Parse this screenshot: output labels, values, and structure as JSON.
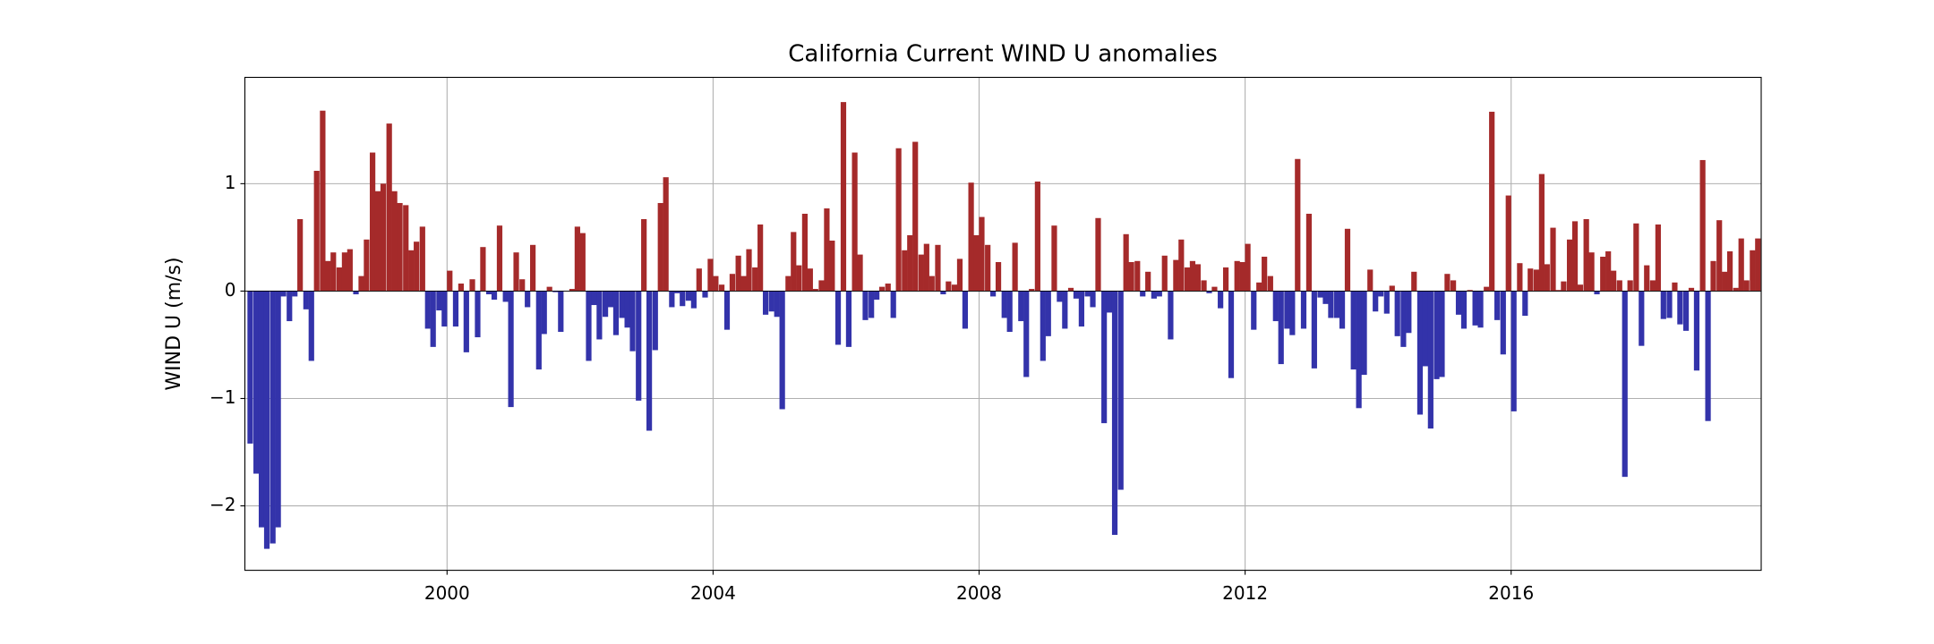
{
  "chart_data": {
    "type": "bar",
    "title": "California Current WIND U anomalies",
    "y_label": "WIND U (m/s)",
    "positive_color": "#a52a2a",
    "negative_color": "#3333aa",
    "grid": true,
    "xlim": [
      1996.96,
      2019.76
    ],
    "ylim": [
      -2.6,
      1.99
    ],
    "xticks": [
      2000,
      2004,
      2008,
      2012,
      2016
    ],
    "yticks": [
      {
        "value": -2,
        "label": "−2"
      },
      {
        "value": -1,
        "label": "−1"
      },
      0,
      1
    ],
    "x": [
      1997.04,
      1997.13,
      1997.21,
      1997.29,
      1997.38,
      1997.46,
      1997.54,
      1997.63,
      1997.71,
      1997.79,
      1997.88,
      1997.96,
      1998.04,
      1998.13,
      1998.21,
      1998.29,
      1998.38,
      1998.46,
      1998.54,
      1998.63,
      1998.71,
      1998.79,
      1998.88,
      1998.96,
      1999.04,
      1999.13,
      1999.21,
      1999.29,
      1999.38,
      1999.46,
      1999.54,
      1999.63,
      1999.71,
      1999.79,
      1999.88,
      1999.96,
      2000.04,
      2000.13,
      2000.21,
      2000.29,
      2000.38,
      2000.46,
      2000.54,
      2000.63,
      2000.71,
      2000.79,
      2000.88,
      2000.96,
      2001.04,
      2001.13,
      2001.21,
      2001.29,
      2001.38,
      2001.46,
      2001.54,
      2001.63,
      2001.71,
      2001.79,
      2001.88,
      2001.96,
      2002.04,
      2002.13,
      2002.21,
      2002.29,
      2002.38,
      2002.46,
      2002.54,
      2002.63,
      2002.71,
      2002.79,
      2002.88,
      2002.96,
      2003.04,
      2003.13,
      2003.21,
      2003.29,
      2003.38,
      2003.46,
      2003.54,
      2003.63,
      2003.71,
      2003.79,
      2003.88,
      2003.96,
      2004.04,
      2004.13,
      2004.21,
      2004.29,
      2004.38,
      2004.46,
      2004.54,
      2004.63,
      2004.71,
      2004.79,
      2004.88,
      2004.96,
      2005.04,
      2005.13,
      2005.21,
      2005.29,
      2005.38,
      2005.46,
      2005.54,
      2005.63,
      2005.71,
      2005.79,
      2005.88,
      2005.96,
      2006.04,
      2006.13,
      2006.21,
      2006.29,
      2006.38,
      2006.46,
      2006.54,
      2006.63,
      2006.71,
      2006.79,
      2006.88,
      2006.96,
      2007.04,
      2007.13,
      2007.21,
      2007.29,
      2007.38,
      2007.46,
      2007.54,
      2007.63,
      2007.71,
      2007.79,
      2007.88,
      2007.96,
      2008.04,
      2008.13,
      2008.21,
      2008.29,
      2008.38,
      2008.46,
      2008.54,
      2008.63,
      2008.71,
      2008.79,
      2008.88,
      2008.96,
      2009.04,
      2009.13,
      2009.21,
      2009.29,
      2009.38,
      2009.46,
      2009.54,
      2009.63,
      2009.71,
      2009.79,
      2009.88,
      2009.96,
      2010.04,
      2010.13,
      2010.21,
      2010.29,
      2010.38,
      2010.46,
      2010.54,
      2010.63,
      2010.71,
      2010.79,
      2010.88,
      2010.96,
      2011.04,
      2011.13,
      2011.21,
      2011.29,
      2011.38,
      2011.46,
      2011.54,
      2011.63,
      2011.71,
      2011.79,
      2011.88,
      2011.96,
      2012.04,
      2012.13,
      2012.21,
      2012.29,
      2012.38,
      2012.46,
      2012.54,
      2012.63,
      2012.71,
      2012.79,
      2012.88,
      2012.96,
      2013.04,
      2013.13,
      2013.21,
      2013.29,
      2013.38,
      2013.46,
      2013.54,
      2013.63,
      2013.71,
      2013.79,
      2013.88,
      2013.96,
      2014.04,
      2014.13,
      2014.21,
      2014.29,
      2014.38,
      2014.46,
      2014.54,
      2014.63,
      2014.71,
      2014.79,
      2014.88,
      2014.96,
      2015.04,
      2015.13,
      2015.21,
      2015.29,
      2015.38,
      2015.46,
      2015.54,
      2015.63,
      2015.71,
      2015.79,
      2015.88,
      2015.96,
      2016.04,
      2016.13,
      2016.21,
      2016.29,
      2016.38,
      2016.46,
      2016.54,
      2016.63,
      2016.71,
      2016.79,
      2016.88,
      2016.96,
      2017.04,
      2017.13,
      2017.21,
      2017.29,
      2017.38,
      2017.46,
      2017.54,
      2017.63,
      2017.71,
      2017.79,
      2017.88,
      2017.96,
      2018.04,
      2018.13,
      2018.21,
      2018.29,
      2018.38,
      2018.46,
      2018.54,
      2018.63,
      2018.71,
      2018.79,
      2018.88,
      2018.96,
      2019.04,
      2019.13,
      2019.21,
      2019.29,
      2019.38,
      2019.46,
      2019.54,
      2019.63,
      2019.71
    ],
    "values": [
      -1.42,
      -1.7,
      -2.2,
      -2.4,
      -2.35,
      -2.2,
      -0.05,
      -0.28,
      -0.05,
      0.67,
      -0.17,
      -0.65,
      1.12,
      1.68,
      0.28,
      0.36,
      0.22,
      0.36,
      0.39,
      -0.03,
      0.14,
      0.48,
      1.29,
      0.93,
      1.0,
      1.56,
      0.93,
      0.82,
      0.8,
      0.38,
      0.46,
      0.6,
      -0.35,
      -0.52,
      -0.18,
      -0.33,
      0.19,
      -0.33,
      0.07,
      -0.57,
      0.11,
      -0.43,
      0.41,
      -0.03,
      -0.08,
      0.61,
      -0.1,
      -1.08,
      0.36,
      0.11,
      -0.15,
      0.43,
      -0.73,
      -0.4,
      0.04,
      -0.01,
      -0.38,
      0.0,
      0.02,
      0.6,
      0.54,
      -0.65,
      -0.13,
      -0.45,
      -0.24,
      -0.15,
      -0.41,
      -0.25,
      -0.34,
      -0.56,
      -1.02,
      0.67,
      -1.3,
      -0.55,
      0.82,
      1.06,
      -0.15,
      -0.02,
      -0.14,
      -0.09,
      -0.16,
      0.21,
      -0.06,
      0.3,
      0.14,
      0.06,
      -0.36,
      0.16,
      0.33,
      0.14,
      0.39,
      0.22,
      0.62,
      -0.22,
      -0.19,
      -0.24,
      -1.1,
      0.14,
      0.55,
      0.24,
      0.72,
      0.21,
      0.02,
      0.1,
      0.77,
      0.47,
      -0.5,
      1.76,
      -0.52,
      1.29,
      0.34,
      -0.27,
      -0.25,
      -0.08,
      0.04,
      0.07,
      -0.25,
      1.33,
      0.38,
      0.52,
      1.39,
      0.34,
      0.44,
      0.14,
      0.43,
      -0.03,
      0.09,
      0.06,
      0.3,
      -0.35,
      1.01,
      0.52,
      0.69,
      0.43,
      -0.05,
      0.27,
      -0.25,
      -0.38,
      0.45,
      -0.28,
      -0.8,
      0.02,
      1.02,
      -0.65,
      -0.42,
      0.61,
      -0.1,
      -0.35,
      0.03,
      -0.07,
      -0.33,
      -0.05,
      -0.15,
      0.68,
      -1.23,
      -0.2,
      -2.27,
      -1.85,
      0.53,
      0.27,
      0.28,
      -0.05,
      0.18,
      -0.07,
      -0.05,
      0.33,
      -0.45,
      0.29,
      0.48,
      0.22,
      0.28,
      0.25,
      0.1,
      -0.02,
      0.04,
      -0.16,
      0.22,
      -0.81,
      0.28,
      0.27,
      0.44,
      -0.36,
      0.08,
      0.32,
      0.14,
      -0.28,
      -0.68,
      -0.35,
      -0.41,
      1.23,
      -0.35,
      0.72,
      -0.72,
      -0.06,
      -0.12,
      -0.25,
      -0.25,
      -0.35,
      0.58,
      -0.73,
      -1.09,
      -0.78,
      0.2,
      -0.19,
      -0.05,
      -0.21,
      0.05,
      -0.42,
      -0.52,
      -0.39,
      0.18,
      -1.15,
      -0.7,
      -1.28,
      -0.82,
      -0.8,
      0.16,
      0.1,
      -0.22,
      -0.35,
      0.01,
      -0.32,
      -0.34,
      0.04,
      1.67,
      -0.27,
      -0.59,
      0.89,
      -1.12,
      0.26,
      -0.23,
      0.21,
      0.2,
      1.09,
      0.25,
      0.59,
      0.01,
      0.09,
      0.48,
      0.65,
      0.06,
      0.67,
      0.36,
      -0.03,
      0.32,
      0.37,
      0.19,
      0.1,
      -1.73,
      0.1,
      0.63,
      -0.51,
      0.24,
      0.1,
      0.62,
      -0.26,
      -0.25,
      0.08,
      -0.31,
      -0.37,
      0.03,
      -0.74,
      1.22,
      -1.21,
      0.28,
      0.66,
      0.18,
      0.37,
      0.03,
      0.49,
      0.1,
      0.38,
      0.49
    ]
  }
}
